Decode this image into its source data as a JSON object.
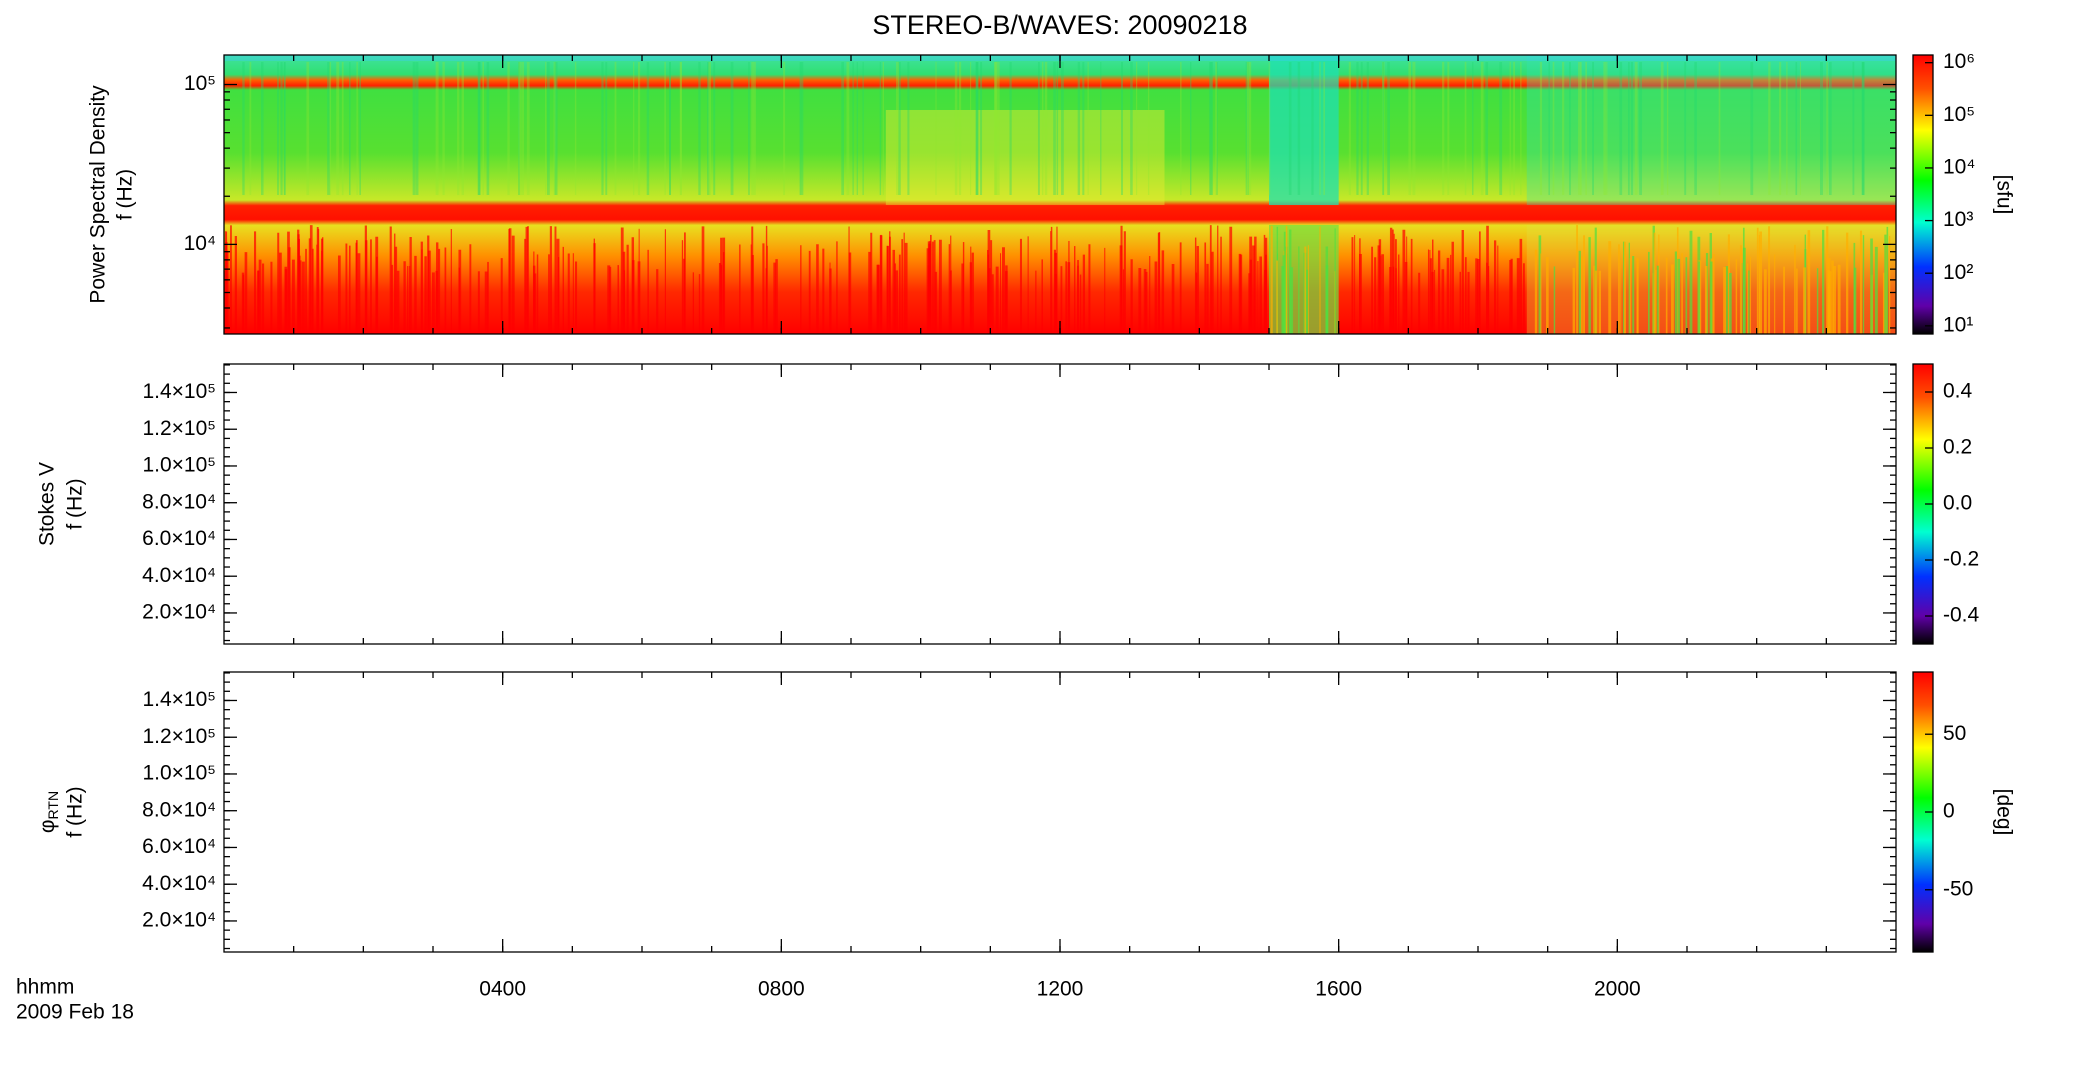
{
  "chart_data": [
    {
      "type": "heatmap",
      "title": "STEREO-B/WAVES: 20090218",
      "ylabel": [
        "Power Spectral Density",
        "f (Hz)"
      ],
      "xlim": [
        0,
        24
      ],
      "xticks": [
        4,
        8,
        12,
        16,
        20
      ],
      "ylog": true,
      "ylim": [
        2750,
        153000
      ],
      "yticks": [
        {
          "value": 10000,
          "label": "10⁴"
        },
        {
          "value": 100000,
          "label": "10⁵"
        }
      ],
      "colorbar": {
        "log": true,
        "lim": [
          7,
          1400000
        ],
        "label": "[sfu]",
        "ticks": [
          {
            "value": 10,
            "label": "10¹"
          },
          {
            "value": 100,
            "label": "10²"
          },
          {
            "value": 1000,
            "label": "10³"
          },
          {
            "value": 10000,
            "label": "10⁴"
          },
          {
            "value": 100000,
            "label": "10⁵"
          },
          {
            "value": 1000000,
            "label": "10⁶"
          }
        ]
      }
    },
    {
      "type": "heatmap",
      "ylabel": [
        "Stokes V",
        "f (Hz)"
      ],
      "xlim": [
        0,
        24
      ],
      "xticks": [
        4,
        8,
        12,
        16,
        20
      ],
      "ylog": false,
      "ylim": [
        3100,
        155500
      ],
      "yticks": [
        {
          "value": 20000,
          "label": "2.0×10⁴"
        },
        {
          "value": 40000,
          "label": "4.0×10⁴"
        },
        {
          "value": 60000,
          "label": "6.0×10⁴"
        },
        {
          "value": 80000,
          "label": "8.0×10⁴"
        },
        {
          "value": 100000,
          "label": "1.0×10⁵"
        },
        {
          "value": 120000,
          "label": "1.2×10⁵"
        },
        {
          "value": 140000,
          "label": "1.4×10⁵"
        }
      ],
      "colorbar": {
        "log": false,
        "lim": [
          -0.5,
          0.5
        ],
        "ticks": [
          -0.4,
          -0.2,
          {
            "value": 0,
            "label": "0.0"
          },
          0.2,
          0.4
        ]
      }
    },
    {
      "type": "heatmap",
      "ylabel": [
        {
          "symbol": "φ",
          "subscript": "RTN"
        },
        "f (Hz)"
      ],
      "xlabel": "hhmm",
      "date": "2009 Feb 18",
      "xlim": [
        0,
        24
      ],
      "xticks": [
        {
          "value": 4,
          "label": "0400"
        },
        {
          "value": 8,
          "label": "0800"
        },
        {
          "value": 12,
          "label": "1200"
        },
        {
          "value": 16,
          "label": "1600"
        },
        {
          "value": 20,
          "label": "2000"
        }
      ],
      "ylog": false,
      "ylim": [
        3100,
        155500
      ],
      "yticks": [
        {
          "value": 20000,
          "label": "2.0×10⁴"
        },
        {
          "value": 40000,
          "label": "4.0×10⁴"
        },
        {
          "value": 60000,
          "label": "6.0×10⁴"
        },
        {
          "value": 80000,
          "label": "8.0×10⁴"
        },
        {
          "value": 100000,
          "label": "1.0×10⁵"
        },
        {
          "value": 120000,
          "label": "1.2×10⁵"
        },
        {
          "value": 140000,
          "label": "1.4×10⁵"
        }
      ],
      "colorbar": {
        "log": false,
        "lim": [
          -90,
          90
        ],
        "label": "[deg]",
        "ticks": [
          -50,
          0,
          50
        ]
      }
    }
  ]
}
